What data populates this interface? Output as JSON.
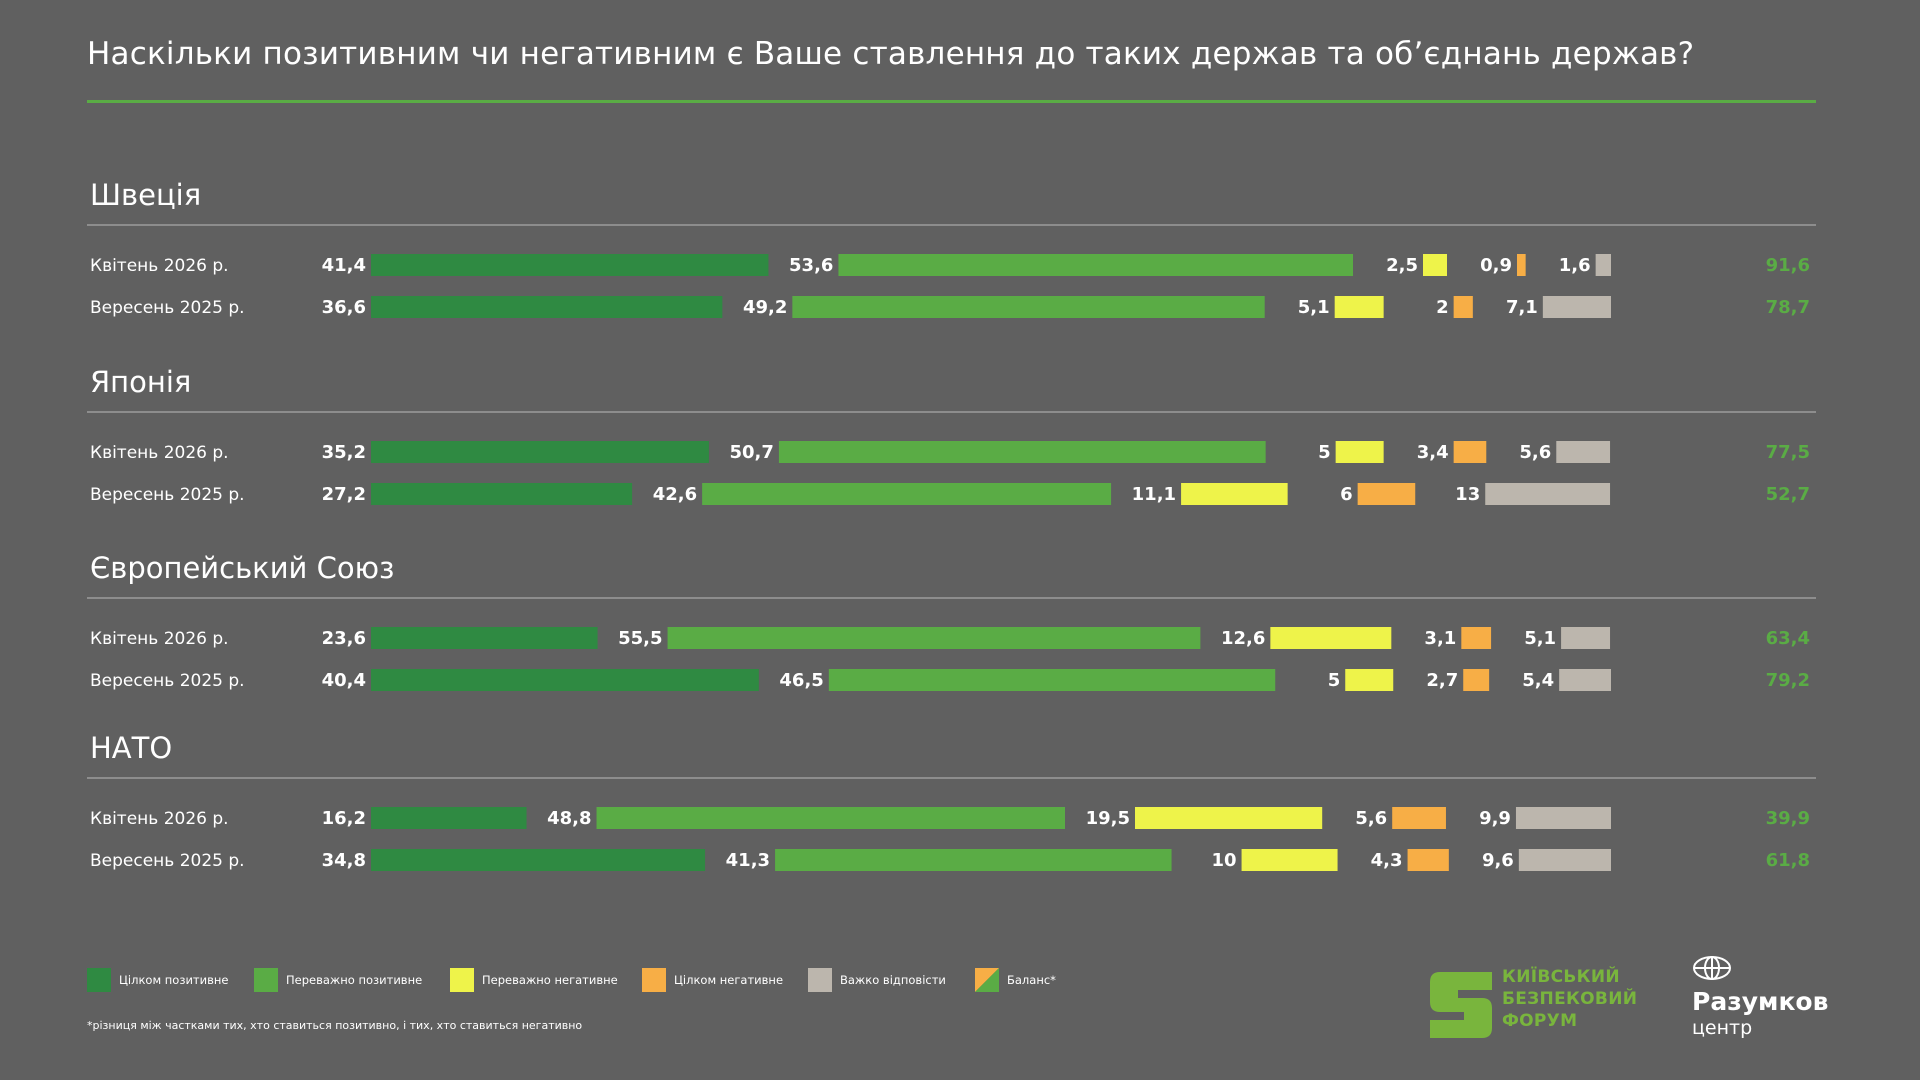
{
  "title": "Наскільки позитивним чи негативним є Ваше ставлення до таких держав та об’єднань держав?",
  "colors": {
    "fully_positive": "#2f8a42",
    "mostly_positive": "#5aac45",
    "mostly_negative": "#eef34a",
    "fully_negative": "#f7ae46",
    "hard_to_say": "#bcb6ad",
    "balance": "#5aac45",
    "background": "#606060",
    "accent": "#5aac45"
  },
  "legend": [
    {
      "label": "Цілком позитивне",
      "color": "#2f8a42"
    },
    {
      "label": "Переважно позитивне",
      "color": "#5aac45"
    },
    {
      "label": "Переважно негативне",
      "color": "#eef34a"
    },
    {
      "label": "Цілком негативне",
      "color": "#f7ae46"
    },
    {
      "label": "Важко відповісти",
      "color": "#bcb6ad"
    },
    {
      "label": "Баланс*",
      "color": "balance"
    }
  ],
  "footnote": "*різниця між частками тих, хто ставиться позитивно, і тих, хто ставиться негативно",
  "logos": {
    "kbf": [
      "КИЇВСЬКИЙ",
      "БЕЗПЕКОВИЙ",
      "ФОРУМ"
    ],
    "razumkov_name": "Разумков",
    "razumkov_sub": "центр",
    "razumkov_icon": "globe-icon"
  },
  "chart_data": {
    "type": "bar",
    "stacked": true,
    "series_names": [
      "Цілком позитивне",
      "Переважно позитивне",
      "Переважно негативне",
      "Цілком негативне",
      "Важко відповісти"
    ],
    "balance_name": "Баланс*",
    "groups": [
      {
        "name": "Швеція",
        "rows": [
          {
            "label": "Квітень  2026 р.",
            "values": [
              41.4,
              53.6,
              2.5,
              0.9,
              1.6
            ],
            "display": [
              "41,4",
              "53,6",
              "2,5",
              "0,9",
              "1,6"
            ],
            "balance": "91,6"
          },
          {
            "label": "Вересень 2025 р.",
            "values": [
              36.6,
              49.2,
              5.1,
              2,
              7.1
            ],
            "display": [
              "36,6",
              "49,2",
              "5,1",
              "2",
              "7,1"
            ],
            "balance": "78,7"
          }
        ]
      },
      {
        "name": "Японія",
        "rows": [
          {
            "label": "Квітень  2026 р.",
            "values": [
              35.2,
              50.7,
              5,
              3.4,
              5.6
            ],
            "display": [
              "35,2",
              "50,7",
              "5",
              "3,4",
              "5,6"
            ],
            "balance": "77,5"
          },
          {
            "label": "Вересень 2025 р.",
            "values": [
              27.2,
              42.6,
              11.1,
              6,
              13
            ],
            "display": [
              "27,2",
              "42,6",
              "11,1",
              "6",
              "13"
            ],
            "balance": "52,7"
          }
        ]
      },
      {
        "name": "Європейський Союз",
        "rows": [
          {
            "label": "Квітень  2026 р.",
            "values": [
              23.6,
              55.5,
              12.6,
              3.1,
              5.1
            ],
            "display": [
              "23,6",
              "55,5",
              "12,6",
              "3,1",
              "5,1"
            ],
            "balance": "63,4"
          },
          {
            "label": "Вересень 2025 р.",
            "values": [
              40.4,
              46.5,
              5,
              2.7,
              5.4
            ],
            "display": [
              "40,4",
              "46,5",
              "5",
              "2,7",
              "5,4"
            ],
            "balance": "79,2"
          }
        ]
      },
      {
        "name": "НАТО",
        "rows": [
          {
            "label": "Квітень  2026 р.",
            "values": [
              16.2,
              48.8,
              19.5,
              5.6,
              9.9
            ],
            "display": [
              "16,2",
              "48,8",
              "19,5",
              "5,6",
              "9,9"
            ],
            "balance": "39,9"
          },
          {
            "label": "Вересень 2025 р.",
            "values": [
              34.8,
              41.3,
              10,
              4.3,
              9.6
            ],
            "display": [
              "34,8",
              "41,3",
              "10",
              "4,3",
              "9,6"
            ],
            "balance": "61,8"
          }
        ]
      }
    ]
  }
}
